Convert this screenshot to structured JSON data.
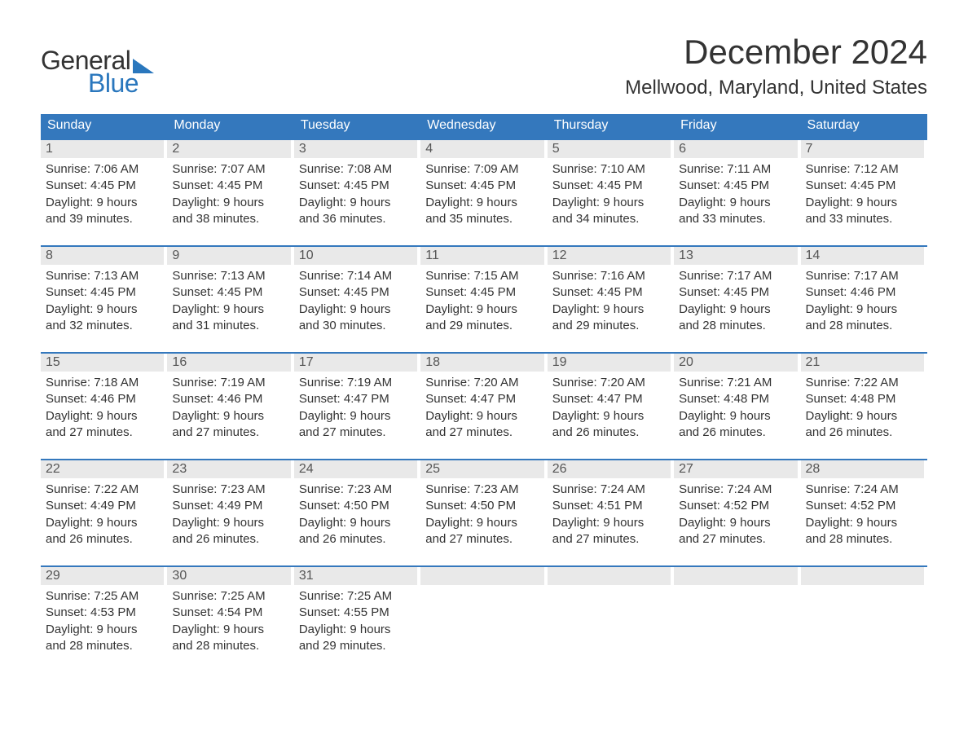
{
  "logo": {
    "word1": "General",
    "word2": "Blue"
  },
  "title": "December 2024",
  "location": "Mellwood, Maryland, United States",
  "colors": {
    "header_bg": "#3478bd",
    "header_text": "#ffffff",
    "row_separator": "#3478bd",
    "daynum_bg": "#e9e9e9",
    "text": "#333333",
    "logo_blue": "#2a77bd",
    "background": "#ffffff"
  },
  "typography": {
    "title_fontsize": 42,
    "location_fontsize": 24,
    "weekday_fontsize": 16,
    "body_fontsize": 15,
    "logo_fontsize": 32
  },
  "weekdays": [
    "Sunday",
    "Monday",
    "Tuesday",
    "Wednesday",
    "Thursday",
    "Friday",
    "Saturday"
  ],
  "weeks": [
    [
      {
        "n": "1",
        "sr": "Sunrise: 7:06 AM",
        "ss": "Sunset: 4:45 PM",
        "d1": "Daylight: 9 hours",
        "d2": "and 39 minutes."
      },
      {
        "n": "2",
        "sr": "Sunrise: 7:07 AM",
        "ss": "Sunset: 4:45 PM",
        "d1": "Daylight: 9 hours",
        "d2": "and 38 minutes."
      },
      {
        "n": "3",
        "sr": "Sunrise: 7:08 AM",
        "ss": "Sunset: 4:45 PM",
        "d1": "Daylight: 9 hours",
        "d2": "and 36 minutes."
      },
      {
        "n": "4",
        "sr": "Sunrise: 7:09 AM",
        "ss": "Sunset: 4:45 PM",
        "d1": "Daylight: 9 hours",
        "d2": "and 35 minutes."
      },
      {
        "n": "5",
        "sr": "Sunrise: 7:10 AM",
        "ss": "Sunset: 4:45 PM",
        "d1": "Daylight: 9 hours",
        "d2": "and 34 minutes."
      },
      {
        "n": "6",
        "sr": "Sunrise: 7:11 AM",
        "ss": "Sunset: 4:45 PM",
        "d1": "Daylight: 9 hours",
        "d2": "and 33 minutes."
      },
      {
        "n": "7",
        "sr": "Sunrise: 7:12 AM",
        "ss": "Sunset: 4:45 PM",
        "d1": "Daylight: 9 hours",
        "d2": "and 33 minutes."
      }
    ],
    [
      {
        "n": "8",
        "sr": "Sunrise: 7:13 AM",
        "ss": "Sunset: 4:45 PM",
        "d1": "Daylight: 9 hours",
        "d2": "and 32 minutes."
      },
      {
        "n": "9",
        "sr": "Sunrise: 7:13 AM",
        "ss": "Sunset: 4:45 PM",
        "d1": "Daylight: 9 hours",
        "d2": "and 31 minutes."
      },
      {
        "n": "10",
        "sr": "Sunrise: 7:14 AM",
        "ss": "Sunset: 4:45 PM",
        "d1": "Daylight: 9 hours",
        "d2": "and 30 minutes."
      },
      {
        "n": "11",
        "sr": "Sunrise: 7:15 AM",
        "ss": "Sunset: 4:45 PM",
        "d1": "Daylight: 9 hours",
        "d2": "and 29 minutes."
      },
      {
        "n": "12",
        "sr": "Sunrise: 7:16 AM",
        "ss": "Sunset: 4:45 PM",
        "d1": "Daylight: 9 hours",
        "d2": "and 29 minutes."
      },
      {
        "n": "13",
        "sr": "Sunrise: 7:17 AM",
        "ss": "Sunset: 4:45 PM",
        "d1": "Daylight: 9 hours",
        "d2": "and 28 minutes."
      },
      {
        "n": "14",
        "sr": "Sunrise: 7:17 AM",
        "ss": "Sunset: 4:46 PM",
        "d1": "Daylight: 9 hours",
        "d2": "and 28 minutes."
      }
    ],
    [
      {
        "n": "15",
        "sr": "Sunrise: 7:18 AM",
        "ss": "Sunset: 4:46 PM",
        "d1": "Daylight: 9 hours",
        "d2": "and 27 minutes."
      },
      {
        "n": "16",
        "sr": "Sunrise: 7:19 AM",
        "ss": "Sunset: 4:46 PM",
        "d1": "Daylight: 9 hours",
        "d2": "and 27 minutes."
      },
      {
        "n": "17",
        "sr": "Sunrise: 7:19 AM",
        "ss": "Sunset: 4:47 PM",
        "d1": "Daylight: 9 hours",
        "d2": "and 27 minutes."
      },
      {
        "n": "18",
        "sr": "Sunrise: 7:20 AM",
        "ss": "Sunset: 4:47 PM",
        "d1": "Daylight: 9 hours",
        "d2": "and 27 minutes."
      },
      {
        "n": "19",
        "sr": "Sunrise: 7:20 AM",
        "ss": "Sunset: 4:47 PM",
        "d1": "Daylight: 9 hours",
        "d2": "and 26 minutes."
      },
      {
        "n": "20",
        "sr": "Sunrise: 7:21 AM",
        "ss": "Sunset: 4:48 PM",
        "d1": "Daylight: 9 hours",
        "d2": "and 26 minutes."
      },
      {
        "n": "21",
        "sr": "Sunrise: 7:22 AM",
        "ss": "Sunset: 4:48 PM",
        "d1": "Daylight: 9 hours",
        "d2": "and 26 minutes."
      }
    ],
    [
      {
        "n": "22",
        "sr": "Sunrise: 7:22 AM",
        "ss": "Sunset: 4:49 PM",
        "d1": "Daylight: 9 hours",
        "d2": "and 26 minutes."
      },
      {
        "n": "23",
        "sr": "Sunrise: 7:23 AM",
        "ss": "Sunset: 4:49 PM",
        "d1": "Daylight: 9 hours",
        "d2": "and 26 minutes."
      },
      {
        "n": "24",
        "sr": "Sunrise: 7:23 AM",
        "ss": "Sunset: 4:50 PM",
        "d1": "Daylight: 9 hours",
        "d2": "and 26 minutes."
      },
      {
        "n": "25",
        "sr": "Sunrise: 7:23 AM",
        "ss": "Sunset: 4:50 PM",
        "d1": "Daylight: 9 hours",
        "d2": "and 27 minutes."
      },
      {
        "n": "26",
        "sr": "Sunrise: 7:24 AM",
        "ss": "Sunset: 4:51 PM",
        "d1": "Daylight: 9 hours",
        "d2": "and 27 minutes."
      },
      {
        "n": "27",
        "sr": "Sunrise: 7:24 AM",
        "ss": "Sunset: 4:52 PM",
        "d1": "Daylight: 9 hours",
        "d2": "and 27 minutes."
      },
      {
        "n": "28",
        "sr": "Sunrise: 7:24 AM",
        "ss": "Sunset: 4:52 PM",
        "d1": "Daylight: 9 hours",
        "d2": "and 28 minutes."
      }
    ],
    [
      {
        "n": "29",
        "sr": "Sunrise: 7:25 AM",
        "ss": "Sunset: 4:53 PM",
        "d1": "Daylight: 9 hours",
        "d2": "and 28 minutes."
      },
      {
        "n": "30",
        "sr": "Sunrise: 7:25 AM",
        "ss": "Sunset: 4:54 PM",
        "d1": "Daylight: 9 hours",
        "d2": "and 28 minutes."
      },
      {
        "n": "31",
        "sr": "Sunrise: 7:25 AM",
        "ss": "Sunset: 4:55 PM",
        "d1": "Daylight: 9 hours",
        "d2": "and 29 minutes."
      },
      {
        "empty": true
      },
      {
        "empty": true
      },
      {
        "empty": true
      },
      {
        "empty": true
      }
    ]
  ]
}
